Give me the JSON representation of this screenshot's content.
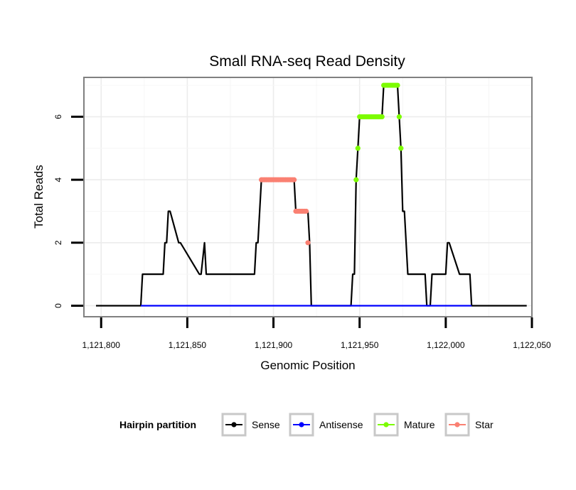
{
  "chart_data": {
    "type": "line",
    "title": "Small RNA-seq Read Density",
    "xlabel": "Genomic Position",
    "ylabel": "Total Reads",
    "xlim": [
      1121790,
      1122050
    ],
    "ylim": [
      -0.35,
      7.25
    ],
    "x_ticks": [
      1121800,
      1121850,
      1121900,
      1121950,
      1122000,
      1122050
    ],
    "x_tick_labels": [
      "1,121,800",
      "1,121,850",
      "1,121,900",
      "1,121,950",
      "1,122,000",
      "1,122,050"
    ],
    "y_ticks": [
      0,
      2,
      4,
      6
    ],
    "y_tick_labels": [
      "0",
      "2",
      "4",
      "6"
    ],
    "grid": true,
    "legend": {
      "title": "Hairpin partition",
      "position": "bottom",
      "entries": [
        {
          "label": "Sense",
          "color": "#000000"
        },
        {
          "label": "Antisense",
          "color": "#0000ff"
        },
        {
          "label": "Mature",
          "color": "#7cfc00"
        },
        {
          "label": "Star",
          "color": "#fa8072"
        }
      ]
    },
    "series": [
      {
        "name": "Sense",
        "color": "#000000",
        "style": "line",
        "x": [
          1121797,
          1121823,
          1121824,
          1121836,
          1121837,
          1121838,
          1121839,
          1121840,
          1121845,
          1121846,
          1121857,
          1121858,
          1121860,
          1121861,
          1121862,
          1121889,
          1121890,
          1121891,
          1121893,
          1121912,
          1121913,
          1121920,
          1121921,
          1121922,
          1121945,
          1121946,
          1121947,
          1121948,
          1121949,
          1121950,
          1121963,
          1121964,
          1121972,
          1121973,
          1121974,
          1121975,
          1121976,
          1121978,
          1121988,
          1121989,
          1121991,
          1121992,
          1122000,
          1122001,
          1122002,
          1122008,
          1122009,
          1122014,
          1122015,
          1122047
        ],
        "values": [
          0,
          0,
          1,
          1,
          2,
          2,
          3,
          3,
          2,
          2,
          1,
          1,
          2,
          1,
          1,
          1,
          2,
          2,
          4,
          4,
          3,
          3,
          2,
          0,
          0,
          1,
          1,
          4,
          5,
          6,
          6,
          7,
          7,
          6,
          5,
          3,
          3,
          1,
          1,
          0,
          0,
          1,
          1,
          2,
          2,
          1,
          1,
          1,
          0,
          0
        ]
      },
      {
        "name": "Antisense",
        "color": "#0000ff",
        "style": "line",
        "x": [
          1121823,
          1122015
        ],
        "values": [
          0,
          0
        ]
      },
      {
        "name": "Mature",
        "color": "#7cfc00",
        "style": "points",
        "x": [
          1121948,
          1121949,
          1121950,
          1121951,
          1121952,
          1121953,
          1121954,
          1121955,
          1121956,
          1121957,
          1121958,
          1121959,
          1121960,
          1121961,
          1121962,
          1121963,
          1121964,
          1121965,
          1121966,
          1121967,
          1121968,
          1121969,
          1121970,
          1121971,
          1121972,
          1121973,
          1121974
        ],
        "values": [
          4,
          5,
          6,
          6,
          6,
          6,
          6,
          6,
          6,
          6,
          6,
          6,
          6,
          6,
          6,
          6,
          7,
          7,
          7,
          7,
          7,
          7,
          7,
          7,
          7,
          6,
          5
        ]
      },
      {
        "name": "Star",
        "color": "#fa8072",
        "style": "points",
        "x": [
          1121893,
          1121894,
          1121895,
          1121896,
          1121897,
          1121898,
          1121899,
          1121900,
          1121901,
          1121902,
          1121903,
          1121904,
          1121905,
          1121906,
          1121907,
          1121908,
          1121909,
          1121910,
          1121911,
          1121912,
          1121913,
          1121914,
          1121915,
          1121916,
          1121917,
          1121918,
          1121919,
          1121920
        ],
        "values": [
          4,
          4,
          4,
          4,
          4,
          4,
          4,
          4,
          4,
          4,
          4,
          4,
          4,
          4,
          4,
          4,
          4,
          4,
          4,
          4,
          3,
          3,
          3,
          3,
          3,
          3,
          3,
          2
        ]
      }
    ]
  }
}
